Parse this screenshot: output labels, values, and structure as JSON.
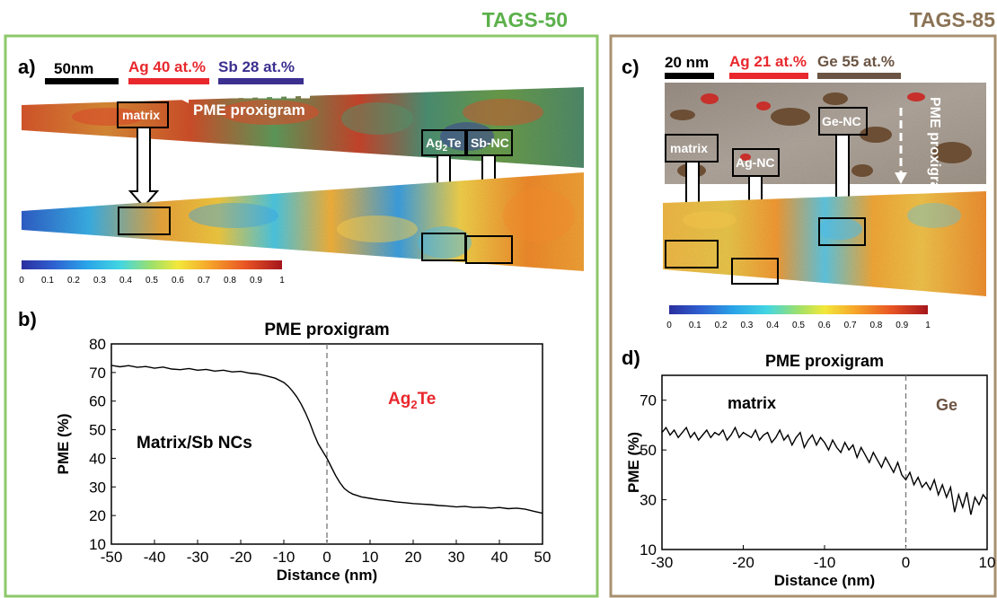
{
  "figure": {
    "left_title": "TAGS-50",
    "right_title": "TAGS-85",
    "colors": {
      "left_frame": "#8DC86A",
      "right_frame": "#A89070",
      "left_title": "#5BB04A",
      "right_title": "#8B7355",
      "red": "#E8282D",
      "purple": "#3B2F8F",
      "brown": "#6B5443"
    }
  },
  "panel_a": {
    "label": "a)",
    "scale_bar": "50nm",
    "legend_ag": "Ag 40 at.%",
    "legend_sb": "Sb 28 at.%",
    "arrow_text": "PME proxigram",
    "box_matrix": "matrix",
    "box_ag2te_base": "Ag",
    "box_ag2te_sub": "2",
    "box_ag2te_tail": "Te",
    "box_sbnc": "Sb-NC",
    "colorbar_ticks": [
      "0",
      "0.1",
      "0.2",
      "0.3",
      "0.4",
      "0.5",
      "0.6",
      "0.7",
      "0.8",
      "0.9",
      "1"
    ]
  },
  "panel_c": {
    "label": "c)",
    "scale_bar": "20 nm",
    "legend_ag": "Ag 21 at.%",
    "legend_ge": "Ge 55 at.%",
    "box_matrix": "matrix",
    "box_agnc": "Ag-NC",
    "box_genc": "Ge-NC",
    "arrow_text": "PME proxigram",
    "colorbar_ticks": [
      "0",
      "0.1",
      "0.2",
      "0.3",
      "0.4",
      "0.5",
      "0.6",
      "0.7",
      "0.8",
      "0.9",
      "1"
    ]
  },
  "chart_data": [
    {
      "panel": "b)",
      "type": "line",
      "title": "PME proxigram",
      "xlabel": "Distance (nm)",
      "ylabel": "PME (%)",
      "xlim": [
        -50,
        50
      ],
      "ylim": [
        10,
        80
      ],
      "xticks": [
        "-50",
        "-40",
        "-30",
        "-20",
        "-10",
        "0",
        "10",
        "20",
        "30",
        "40",
        "50"
      ],
      "yticks": [
        "10",
        "20",
        "30",
        "40",
        "50",
        "60",
        "70",
        "80"
      ],
      "grid": false,
      "annotations": {
        "left_label": "Matrix/Sb NCs",
        "right_label_base": "Ag",
        "right_label_sub": "2",
        "right_label_tail": "Te"
      },
      "series": [
        {
          "x": [
            -50,
            -48,
            -46,
            -44,
            -42,
            -40,
            -38,
            -36,
            -34,
            -32,
            -30,
            -28,
            -26,
            -24,
            -22,
            -20,
            -18,
            -16,
            -14,
            -12,
            -10,
            -9,
            -8,
            -7,
            -6,
            -5,
            -4,
            -3,
            -2,
            -1,
            0,
            1,
            2,
            3,
            4,
            5,
            6,
            7,
            8,
            10,
            12,
            14,
            16,
            18,
            20,
            22,
            24,
            26,
            28,
            30,
            32,
            34,
            36,
            38,
            40,
            42,
            44,
            46,
            48,
            50
          ],
          "values": [
            72.5,
            72.0,
            72.4,
            71.8,
            72.1,
            71.5,
            71.9,
            71.2,
            71.0,
            71.4,
            70.8,
            71.1,
            70.5,
            70.8,
            70.2,
            70.4,
            69.8,
            69.5,
            68.8,
            68.0,
            66.5,
            65.2,
            63.5,
            61.5,
            59.0,
            56.0,
            52.5,
            48.5,
            45.0,
            42.5,
            40.0,
            37.0,
            34.0,
            31.5,
            29.5,
            28.3,
            27.5,
            27.0,
            26.5,
            26.0,
            25.5,
            25.2,
            24.8,
            24.5,
            24.2,
            24.0,
            23.8,
            23.5,
            23.3,
            23.0,
            23.2,
            22.8,
            22.9,
            22.6,
            22.8,
            22.4,
            22.6,
            22.2,
            21.5,
            20.8
          ]
        }
      ]
    },
    {
      "panel": "d)",
      "type": "line",
      "title": "PME proxigram",
      "xlabel": "Distance (nm)",
      "ylabel": "PME (%)",
      "xlim": [
        -30,
        10
      ],
      "ylim": [
        10,
        80
      ],
      "xticks": [
        "-30",
        "-20",
        "-10",
        "0",
        "10"
      ],
      "yticks": [
        "10",
        "30",
        "50",
        "70"
      ],
      "grid": false,
      "annotations": {
        "left_label": "matrix",
        "right_label": "Ge"
      },
      "series": [
        {
          "x": [
            -30,
            -29.5,
            -29,
            -28.5,
            -28,
            -27.5,
            -27,
            -26.5,
            -26,
            -25.5,
            -25,
            -24.5,
            -24,
            -23.5,
            -23,
            -22.5,
            -22,
            -21.5,
            -21,
            -20.5,
            -20,
            -19.5,
            -19,
            -18.5,
            -18,
            -17.5,
            -17,
            -16.5,
            -16,
            -15.5,
            -15,
            -14.5,
            -14,
            -13.5,
            -13,
            -12.5,
            -12,
            -11.5,
            -11,
            -10.5,
            -10,
            -9.5,
            -9,
            -8.5,
            -8,
            -7.5,
            -7,
            -6.5,
            -6,
            -5.5,
            -5,
            -4.5,
            -4,
            -3.5,
            -3,
            -2.5,
            -2,
            -1.5,
            -1,
            -0.5,
            0,
            0.5,
            1,
            1.5,
            2,
            2.5,
            3,
            3.5,
            4,
            4.5,
            5,
            5.5,
            6,
            6.5,
            7,
            7.5,
            8,
            8.5,
            9,
            9.5,
            10
          ],
          "values": [
            57,
            59,
            56,
            58,
            55,
            57,
            59,
            55,
            57,
            54,
            56,
            58,
            55,
            57,
            56,
            58,
            54,
            56,
            59,
            55,
            57,
            56,
            55,
            58,
            54,
            56,
            57,
            53,
            55,
            58,
            54,
            56,
            52,
            55,
            57,
            51,
            54,
            56,
            52,
            55,
            53,
            50,
            54,
            51,
            49,
            53,
            50,
            52,
            47,
            51,
            48,
            45,
            49,
            46,
            43,
            47,
            44,
            41,
            45,
            40,
            38,
            41,
            36,
            39,
            35,
            37,
            34,
            38,
            32,
            36,
            31,
            35,
            25,
            32,
            27,
            33,
            24,
            31,
            28,
            32,
            30
          ]
        }
      ]
    }
  ]
}
